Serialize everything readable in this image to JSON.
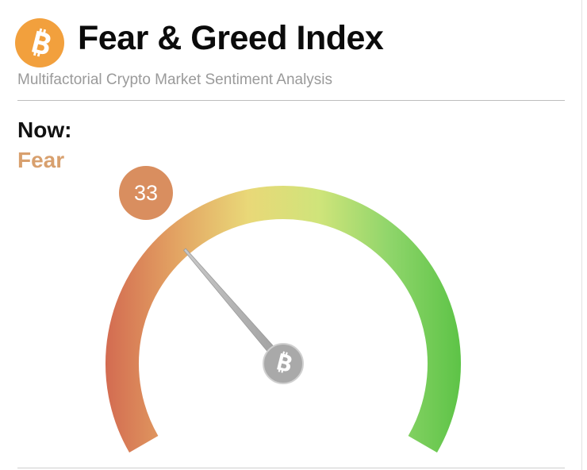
{
  "header": {
    "title": "Fear & Greed Index",
    "subtitle": "Multifactorial Crypto Market Sentiment Analysis",
    "logo_icon": "bitcoin-icon",
    "logo_color": "#F2A03D"
  },
  "status": {
    "now_label": "Now:",
    "sentiment": "Fear",
    "sentiment_color": "#D8A06E"
  },
  "gauge": {
    "value": 33,
    "value_label": "33",
    "min": 0,
    "max": 100,
    "badge_color": "#D98E5F",
    "center_icon": "bitcoin-icon",
    "gradient_colors": [
      "#D36B51",
      "#E3A463",
      "#E9D878",
      "#CFE47A",
      "#8ED56A",
      "#5CC346"
    ]
  }
}
